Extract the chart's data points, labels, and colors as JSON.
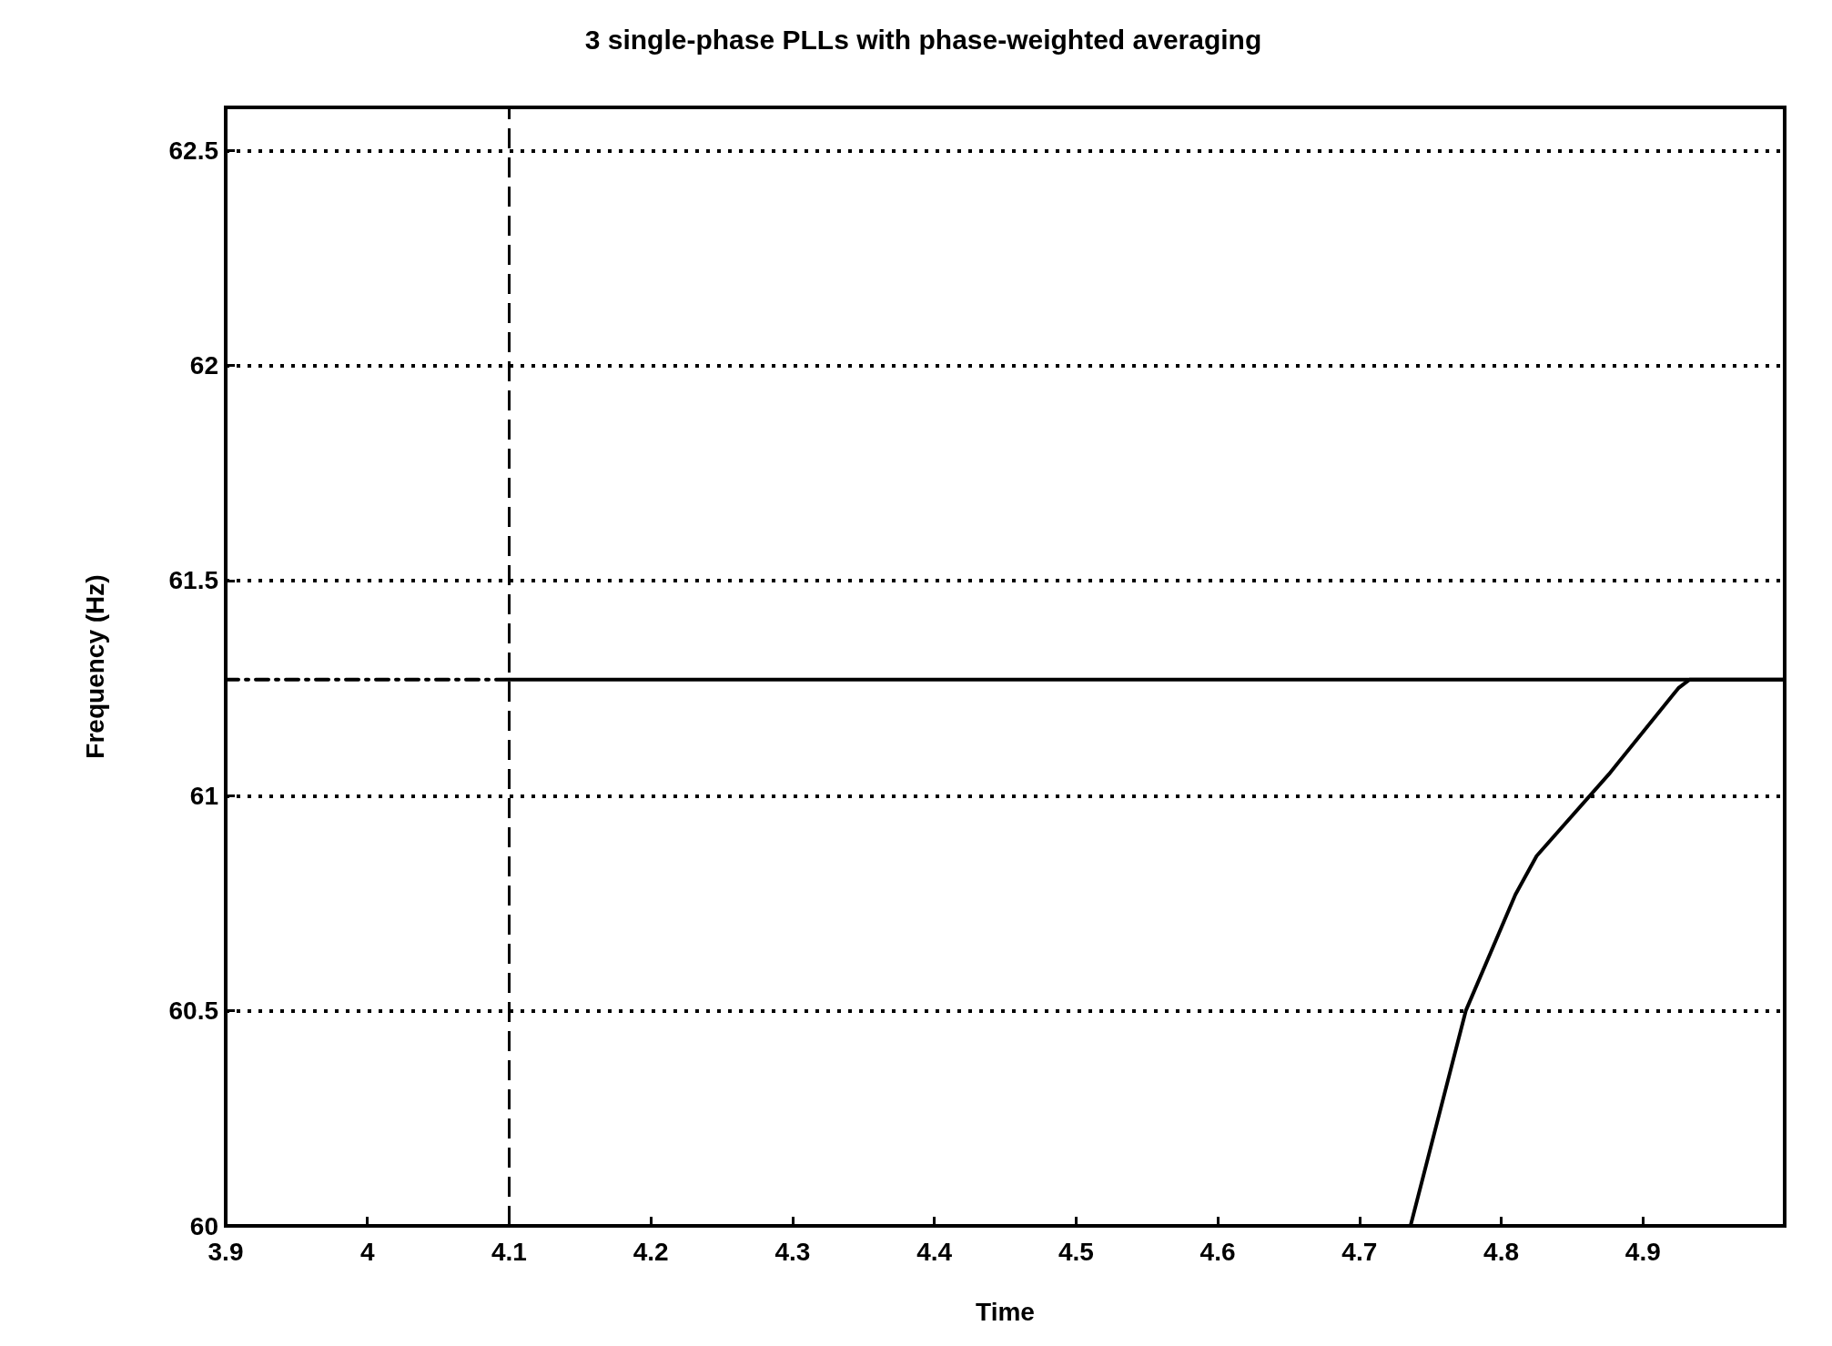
{
  "chart_data": {
    "type": "line",
    "title": "3 single-phase PLLs with phase-weighted averaging",
    "xlabel": "Time",
    "ylabel": "Frequency (Hz)",
    "xlim": [
      3.9,
      5.0
    ],
    "xticks": [
      3.9,
      4,
      4.1,
      4.2,
      4.3,
      4.4,
      4.5,
      4.6,
      4.7,
      4.8,
      4.9
    ],
    "ylim": [
      60,
      62.6
    ],
    "yticks": [
      60,
      60.5,
      61,
      61.5,
      62,
      62.5
    ],
    "grid": "y",
    "marker": "none",
    "series": [
      {
        "color": "#000000",
        "line_style": "dashed",
        "x": [
          3.9,
          4.1
        ],
        "values": [
          61.27,
          61.27
        ]
      },
      {
        "color": "#000000",
        "line_style": "solid",
        "x": [
          4.1,
          5.0
        ],
        "values": [
          61.27,
          61.27
        ]
      },
      {
        "color": "#000000",
        "line_style": "solid",
        "x": [
          3.9,
          4.736,
          4.775,
          4.81,
          4.825,
          4.876,
          4.925,
          4.933,
          4.98,
          5.0
        ],
        "values": [
          60,
          60,
          60.5,
          60.77,
          60.86,
          61.05,
          61.25,
          61.27,
          61.27,
          61.27
        ]
      }
    ],
    "ref_lines": [
      {
        "axis": "x",
        "value": 4.1,
        "color": "#000000",
        "line_style": "dashed"
      }
    ]
  }
}
